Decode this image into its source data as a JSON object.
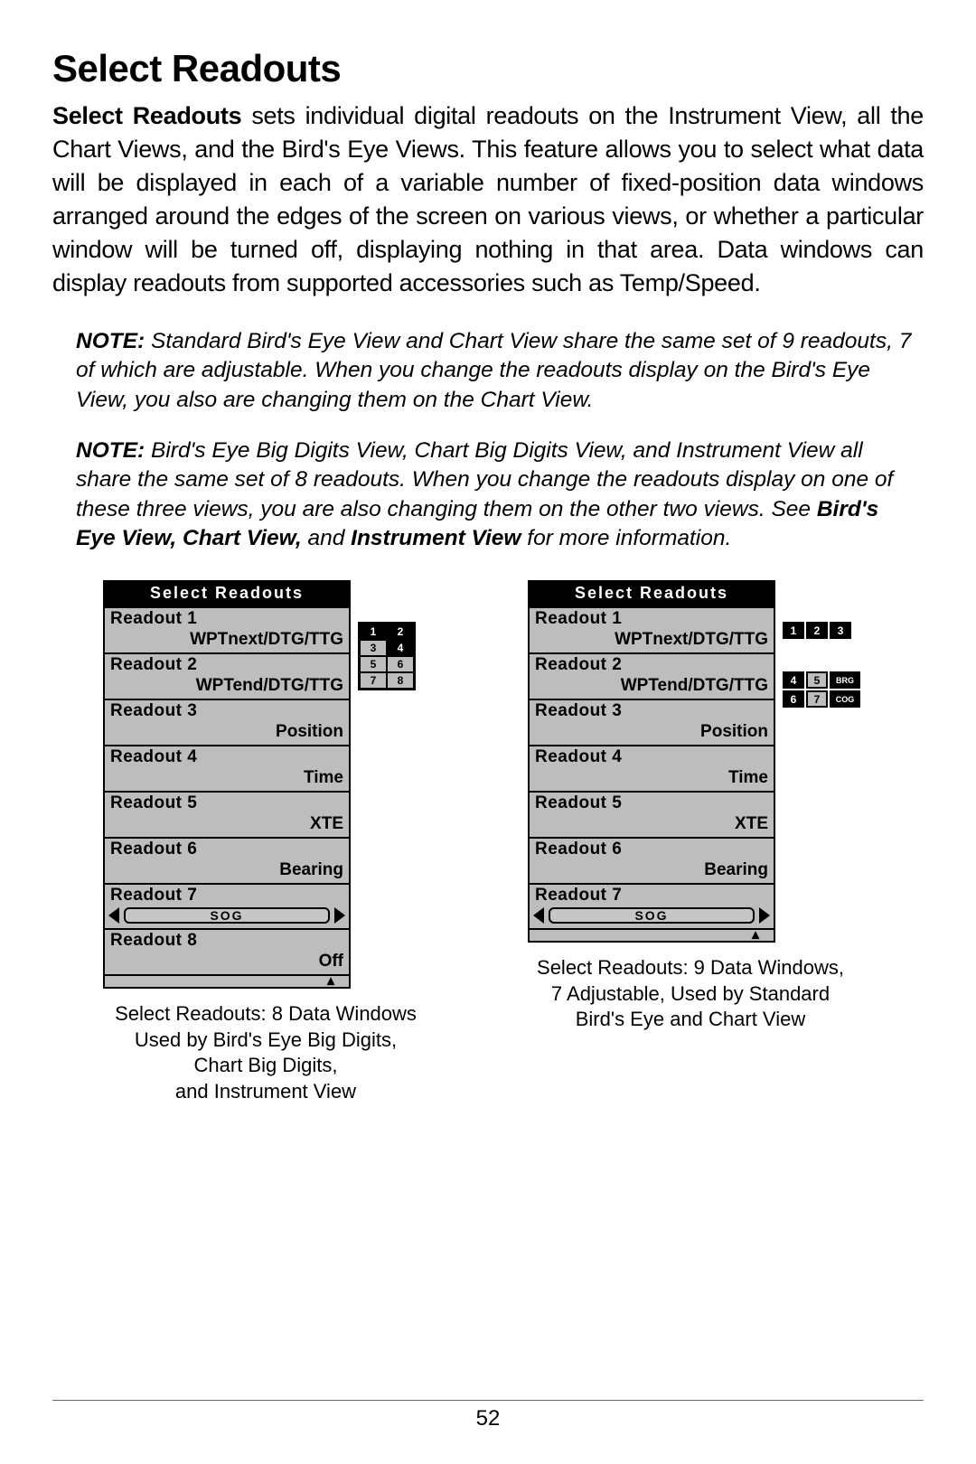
{
  "title": "Select Readouts",
  "intro_lead": "Select Readouts",
  "intro_rest": " sets individual digital readouts on the Instrument View, all the Chart Views, and the Bird's Eye Views. This feature allows you to select what data will be displayed in each of a variable number of fixed-position data windows arranged around the edges of the screen on various views, or whether a particular window will be turned off, displaying nothing in that area. Data windows can display readouts from supported accessories such as Temp/Speed.",
  "note1_label": "NOTE:",
  "note1_text": " Standard Bird's Eye View and Chart View share the same set of 9 readouts, 7 of which are adjustable. When you change the readouts display on the Bird's Eye View, you also are changing them on the Chart View.",
  "note2_label": "NOTE:",
  "note2_a": " Bird's Eye Big Digits View, Chart Big Digits View, and Instrument View all share the same set of 8 readouts. When you change the readouts display on one of these three views, you are also changing them on the other two views. See ",
  "note2_b1": "Bird's Eye View, Chart View,",
  "note2_mid": " and ",
  "note2_b2": "Instrument View",
  "note2_end": " for more information.",
  "panel": {
    "head": "Select  Readouts",
    "r1l": "Readout 1",
    "r1v": "WPTnext/DTG/TTG",
    "r2l": "Readout 2",
    "r2v": "WPTend/DTG/TTG",
    "r3l": "Readout 3",
    "r3v": "Position",
    "r4l": "Readout 4",
    "r4v": "Time",
    "r5l": "Readout 5",
    "r5v": "XTE",
    "r6l": "Readout 6",
    "r6v": "Bearing",
    "r7l": "Readout 7",
    "r7v": "SOG",
    "r8l": "Readout 8",
    "r8v": "Off"
  },
  "grid8": {
    "c1": "1",
    "c2": "2",
    "c3": "3",
    "c4": "4",
    "c5": "5",
    "c6": "6",
    "c7": "7",
    "c8": "8"
  },
  "grid9": {
    "t1": "1",
    "t2": "2",
    "t3": "3",
    "b1": "4",
    "b2": "5",
    "b3": "BRG",
    "b4": "6",
    "b5": "7",
    "b6": "COG"
  },
  "cap_left_1": "Select Readouts: 8 Data Windows",
  "cap_left_2": "Used by Bird's Eye Big Digits,",
  "cap_left_3": "Chart Big Digits,",
  "cap_left_4": "and Instrument View",
  "cap_right_1": "Select Readouts: 9 Data Windows,",
  "cap_right_2": "7 Adjustable, Used by Standard",
  "cap_right_3": "Bird's Eye and Chart View",
  "page_number": "52",
  "scroll_glyph": "▴"
}
